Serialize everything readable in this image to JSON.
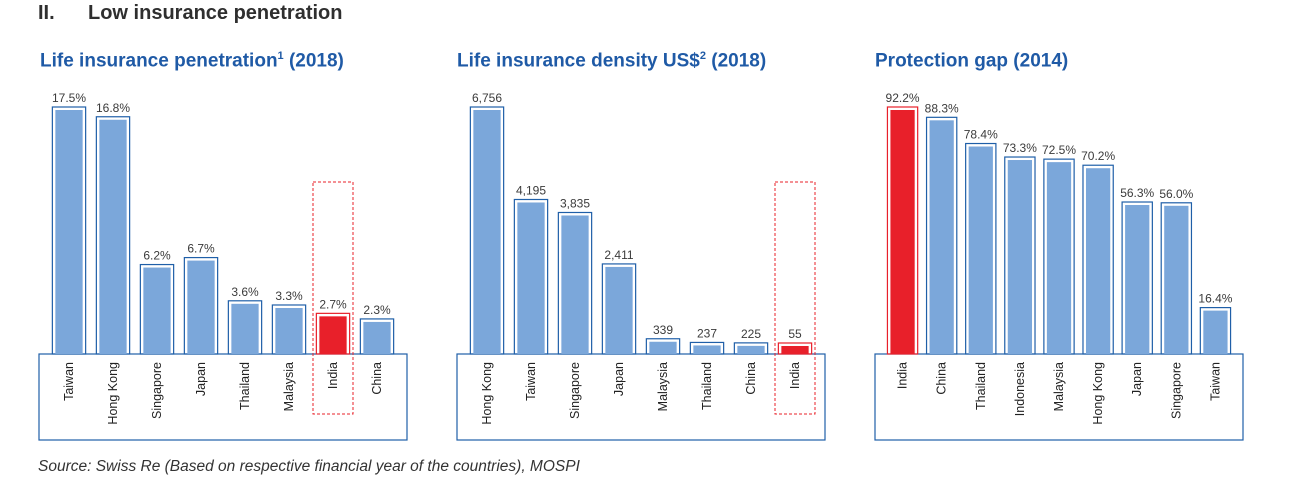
{
  "heading": {
    "number": "II.",
    "title": "Low insurance penetration"
  },
  "colors": {
    "bar": "#7ba7da",
    "bar_outline": "#1f5fa8",
    "highlight": "#e8202a",
    "frame": "#1f5fa8",
    "title": "#1f5aa6"
  },
  "chart_data": [
    {
      "type": "bar",
      "title": "Life insurance penetration",
      "title_sup": "1",
      "title_suffix": " (2018)",
      "categories": [
        "Taiwan",
        "Hong Kong",
        "Singapore",
        "Japan",
        "Thailand",
        "Malaysia",
        "India",
        "China"
      ],
      "values": [
        17.5,
        16.8,
        6.2,
        6.7,
        3.6,
        3.3,
        2.7,
        2.3
      ],
      "labels": [
        "17.5%",
        "16.8%",
        "6.2%",
        "6.7%",
        "3.6%",
        "3.3%",
        "2.7%",
        "2.3%"
      ],
      "highlight": "India",
      "highlight_box": true,
      "ylim": [
        0,
        17.5
      ],
      "xlabel": "",
      "ylabel": ""
    },
    {
      "type": "bar",
      "title": "Life insurance density US$",
      "title_sup": "2",
      "title_suffix": " (2018)",
      "categories": [
        "Hong Kong",
        "Taiwan",
        "Singapore",
        "Japan",
        "Malaysia",
        "Thailand",
        "China",
        "India"
      ],
      "values": [
        6756,
        4195,
        3835,
        2411,
        339,
        237,
        225,
        55
      ],
      "labels": [
        "6,756",
        "4,195",
        "3,835",
        "2,411",
        "339",
        "237",
        "225",
        "55"
      ],
      "highlight": "India",
      "highlight_box": true,
      "ylim": [
        0,
        6756
      ],
      "xlabel": "",
      "ylabel": ""
    },
    {
      "type": "bar",
      "title": "Protection gap",
      "title_sup": "",
      "title_suffix": " (2014)",
      "categories": [
        "India",
        "China",
        "Thailand",
        "Indonesia",
        "Malaysia",
        "Hong Kong",
        "Japan",
        "Singapore",
        "Taiwan"
      ],
      "values": [
        92.2,
        88.3,
        78.4,
        73.3,
        72.5,
        70.2,
        56.3,
        56.0,
        16.4
      ],
      "labels": [
        "92.2%",
        "88.3%",
        "78.4%",
        "73.3%",
        "72.5%",
        "70.2%",
        "56.3%",
        "56.0%",
        "16.4%"
      ],
      "highlight": "India",
      "highlight_box": false,
      "ylim": [
        0,
        92.2
      ],
      "xlabel": "",
      "ylabel": ""
    }
  ],
  "source": "Source: Swiss Re (Based on respective financial year of the countries), MOSPI"
}
